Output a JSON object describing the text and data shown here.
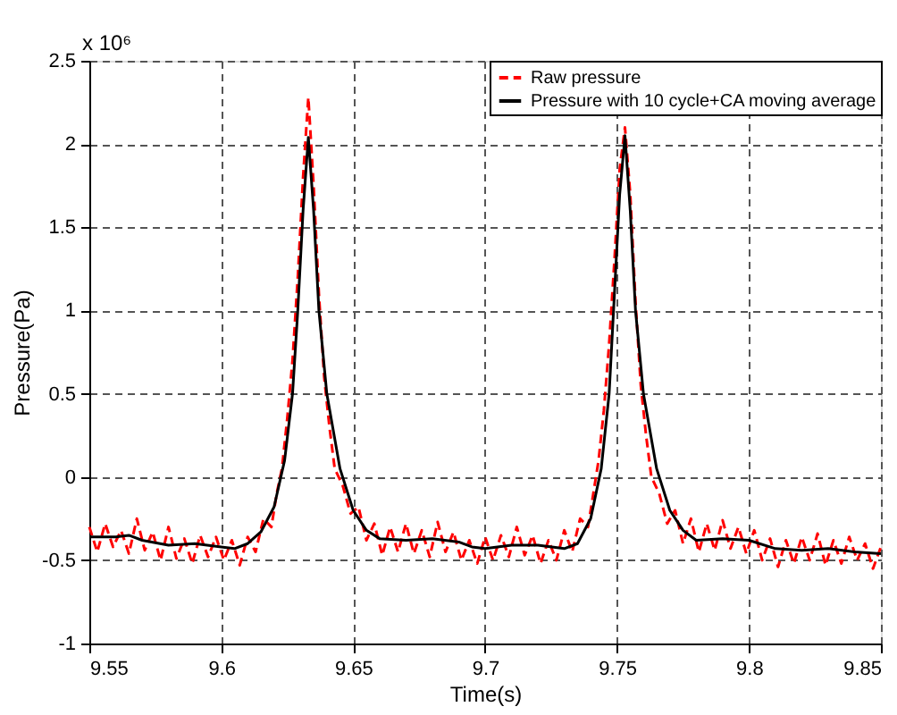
{
  "chart_data": {
    "type": "line",
    "xlabel": "Time(s)",
    "ylabel": "Pressure(Pa)",
    "annotations": [
      "x 10⁶"
    ],
    "xlim": [
      9.55,
      9.85
    ],
    "xticks": [
      9.55,
      9.6,
      9.65,
      9.7,
      9.75,
      9.8,
      9.85
    ],
    "ylim": [
      -1,
      2.5
    ],
    "yticks": [
      -1,
      -0.5,
      0,
      0.5,
      1,
      1.5,
      2,
      2.5
    ],
    "grid": true,
    "legend": "top right",
    "series": [
      {
        "name": "Raw pressure",
        "color": "#ff0000",
        "line_style": "dashed",
        "x": [
          9.55,
          9.553,
          9.556,
          9.559,
          9.562,
          9.565,
          9.568,
          9.571,
          9.574,
          9.577,
          9.58,
          9.583,
          9.586,
          9.589,
          9.592,
          9.595,
          9.598,
          9.601,
          9.604,
          9.607,
          9.61,
          9.613,
          9.616,
          9.619,
          9.621,
          9.623,
          9.625,
          9.627,
          9.629,
          9.631,
          9.633,
          9.635,
          9.637,
          9.639,
          9.641,
          9.643,
          9.646,
          9.649,
          9.652,
          9.655,
          9.658,
          9.661,
          9.664,
          9.667,
          9.67,
          9.673,
          9.676,
          9.679,
          9.682,
          9.685,
          9.688,
          9.691,
          9.694,
          9.697,
          9.7,
          9.703,
          9.706,
          9.709,
          9.712,
          9.715,
          9.718,
          9.721,
          9.724,
          9.727,
          9.73,
          9.733,
          9.736,
          9.739,
          9.741,
          9.743,
          9.745,
          9.747,
          9.749,
          9.751,
          9.753,
          9.755,
          9.757,
          9.759,
          9.761,
          9.763,
          9.766,
          9.769,
          9.772,
          9.775,
          9.778,
          9.781,
          9.784,
          9.787,
          9.79,
          9.793,
          9.796,
          9.799,
          9.802,
          9.805,
          9.808,
          9.811,
          9.814,
          9.817,
          9.82,
          9.823,
          9.826,
          9.829,
          9.832,
          9.835,
          9.838,
          9.841,
          9.844,
          9.847,
          9.85
        ],
        "values": [
          -0.3,
          -0.45,
          -0.28,
          -0.42,
          -0.32,
          -0.46,
          -0.25,
          -0.44,
          -0.33,
          -0.5,
          -0.3,
          -0.49,
          -0.37,
          -0.52,
          -0.35,
          -0.48,
          -0.36,
          -0.5,
          -0.38,
          -0.53,
          -0.36,
          -0.45,
          -0.25,
          -0.3,
          -0.1,
          0.05,
          0.35,
          0.7,
          1.2,
          1.8,
          2.28,
          1.75,
          1.1,
          0.6,
          0.3,
          0.05,
          -0.05,
          -0.22,
          -0.18,
          -0.38,
          -0.28,
          -0.47,
          -0.3,
          -0.45,
          -0.28,
          -0.46,
          -0.32,
          -0.48,
          -0.27,
          -0.45,
          -0.33,
          -0.5,
          -0.38,
          -0.52,
          -0.36,
          -0.5,
          -0.35,
          -0.48,
          -0.3,
          -0.47,
          -0.35,
          -0.52,
          -0.38,
          -0.5,
          -0.32,
          -0.45,
          -0.25,
          -0.3,
          -0.1,
          0.1,
          0.4,
          0.8,
          1.3,
          1.85,
          2.1,
          1.7,
          1.05,
          0.55,
          0.25,
          0.0,
          -0.1,
          -0.28,
          -0.2,
          -0.4,
          -0.25,
          -0.45,
          -0.28,
          -0.44,
          -0.26,
          -0.43,
          -0.3,
          -0.46,
          -0.32,
          -0.5,
          -0.37,
          -0.54,
          -0.38,
          -0.52,
          -0.36,
          -0.5,
          -0.34,
          -0.53,
          -0.38,
          -0.52,
          -0.36,
          -0.5,
          -0.4,
          -0.55,
          -0.42
        ]
      },
      {
        "name": "Pressure with 10 cycle+CA moving average",
        "color": "#000000",
        "line_style": "solid",
        "x": [
          9.55,
          9.56,
          9.565,
          9.57,
          9.58,
          9.59,
          9.6,
          9.605,
          9.61,
          9.615,
          9.62,
          9.624,
          9.627,
          9.629,
          9.631,
          9.633,
          9.635,
          9.637,
          9.64,
          9.645,
          9.65,
          9.655,
          9.66,
          9.67,
          9.68,
          9.69,
          9.695,
          9.7,
          9.71,
          9.72,
          9.73,
          9.735,
          9.74,
          9.744,
          9.747,
          9.749,
          9.751,
          9.753,
          9.755,
          9.757,
          9.76,
          9.765,
          9.77,
          9.775,
          9.78,
          9.79,
          9.8,
          9.81,
          9.82,
          9.83,
          9.84,
          9.85
        ],
        "values": [
          -0.36,
          -0.36,
          -0.35,
          -0.38,
          -0.41,
          -0.4,
          -0.42,
          -0.43,
          -0.4,
          -0.33,
          -0.18,
          0.1,
          0.5,
          1.0,
          1.6,
          2.04,
          1.6,
          1.0,
          0.5,
          0.05,
          -0.2,
          -0.32,
          -0.37,
          -0.38,
          -0.37,
          -0.39,
          -0.42,
          -0.43,
          -0.41,
          -0.41,
          -0.43,
          -0.4,
          -0.25,
          0.05,
          0.5,
          1.1,
          1.7,
          2.05,
          1.6,
          1.0,
          0.5,
          0.05,
          -0.2,
          -0.32,
          -0.38,
          -0.37,
          -0.38,
          -0.43,
          -0.44,
          -0.43,
          -0.45,
          -0.46
        ]
      }
    ]
  }
}
